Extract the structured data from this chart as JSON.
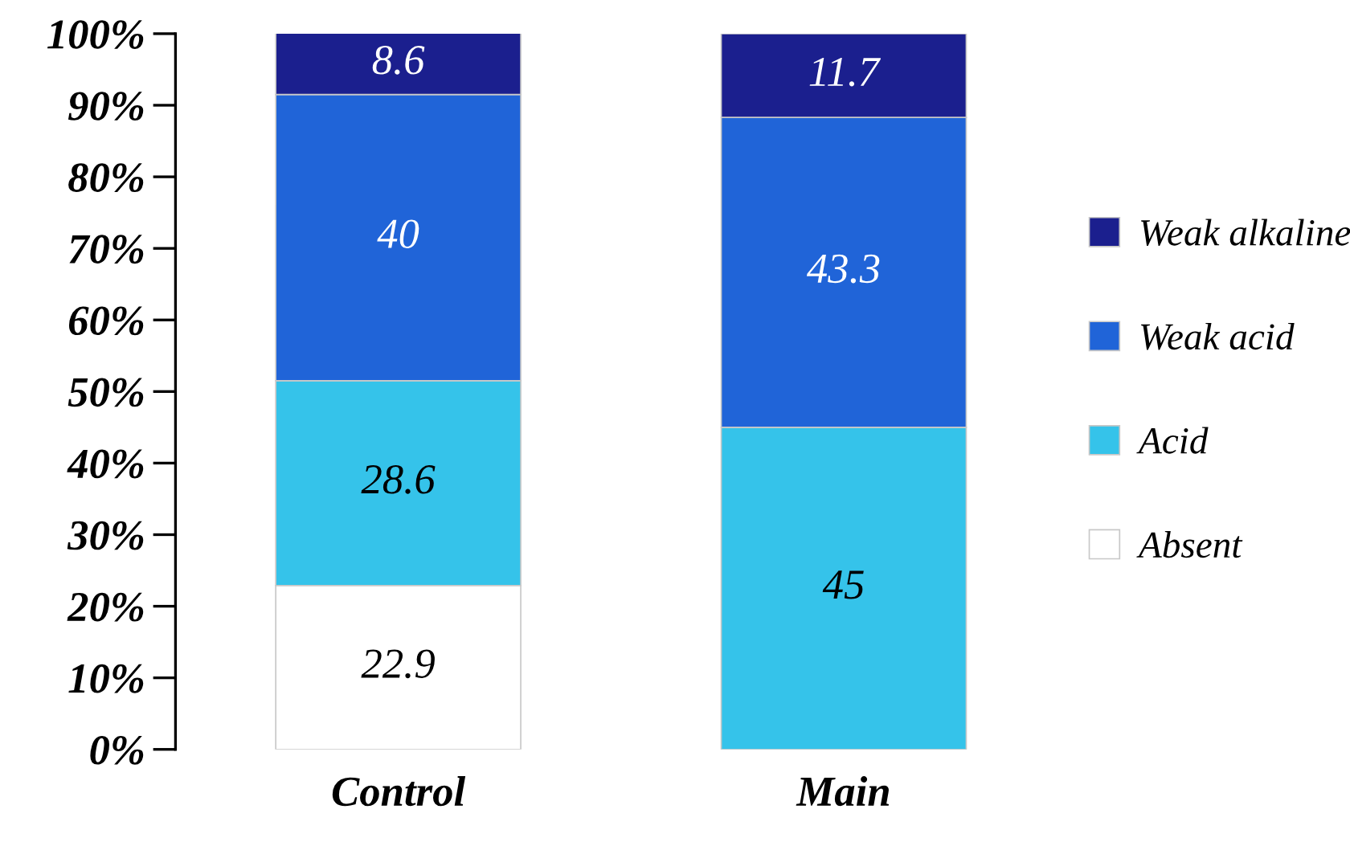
{
  "chart_data": {
    "type": "bar",
    "stacked": true,
    "categories": [
      "Control",
      "Main"
    ],
    "series": [
      {
        "name": "Absent",
        "color": "#ffffff",
        "values": [
          22.9,
          0
        ],
        "value_labels": [
          "22.9",
          null
        ]
      },
      {
        "name": "Acid",
        "color": "#35c3ea",
        "values": [
          28.6,
          45
        ],
        "value_labels": [
          "28.6",
          "45"
        ]
      },
      {
        "name": "Weak acid",
        "color": "#2064d8",
        "values": [
          40,
          43.3
        ],
        "value_labels": [
          "40",
          "43.3"
        ]
      },
      {
        "name": "Weak alkaline",
        "color": "#1b1f8e",
        "values": [
          8.6,
          11.7
        ],
        "value_labels": [
          "8.6",
          "11.7"
        ]
      }
    ],
    "ylim": [
      0,
      100
    ],
    "yticks": [
      {
        "value": 0,
        "label": "0%"
      },
      {
        "value": 10,
        "label": "10%"
      },
      {
        "value": 20,
        "label": "20%"
      },
      {
        "value": 30,
        "label": "30%"
      },
      {
        "value": 40,
        "label": "40%"
      },
      {
        "value": 50,
        "label": "50%"
      },
      {
        "value": 60,
        "label": "60%"
      },
      {
        "value": 70,
        "label": "70%"
      },
      {
        "value": 80,
        "label": "80%"
      },
      {
        "value": 90,
        "label": "90%"
      },
      {
        "value": 100,
        "label": "100%"
      }
    ],
    "legend": "right",
    "grid": false
  }
}
